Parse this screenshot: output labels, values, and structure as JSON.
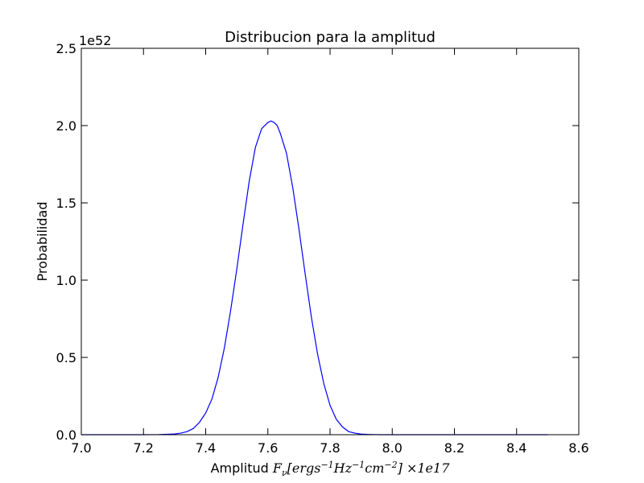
{
  "chart_data": {
    "type": "line",
    "title": "Distribucion para la amplitud",
    "xlabel": {
      "prefix": "Amplitud ",
      "math": "F",
      "math_sub": "ν",
      "math_rest": "[ergs",
      "exp1": "−1",
      "hz": "Hz",
      "exp2": "−1",
      "cm": "cm",
      "exp3": "−2",
      "close": "] ×1e17"
    },
    "ylabel": "Probabilidad",
    "y_offset_text": "1e52",
    "xlim": [
      7.0,
      8.6
    ],
    "ylim": [
      0.0,
      2.5
    ],
    "xticks": [
      "7.0",
      "7.2",
      "7.4",
      "7.6",
      "7.8",
      "8.0",
      "8.2",
      "8.4",
      "8.6"
    ],
    "yticks": [
      "0.0",
      "0.5",
      "1.0",
      "1.5",
      "2.0",
      "2.5"
    ],
    "line_color": "#0000ff",
    "grid": false,
    "series": [
      {
        "x": [
          7.0,
          7.1,
          7.2,
          7.25,
          7.3,
          7.32,
          7.34,
          7.36,
          7.38,
          7.4,
          7.42,
          7.44,
          7.46,
          7.48,
          7.5,
          7.52,
          7.54,
          7.56,
          7.58,
          7.6,
          7.61,
          7.62,
          7.63,
          7.64,
          7.66,
          7.68,
          7.7,
          7.72,
          7.74,
          7.76,
          7.78,
          7.8,
          7.82,
          7.84,
          7.86,
          7.88,
          7.9,
          7.92,
          7.94,
          7.96,
          8.0,
          8.1,
          8.2,
          8.3,
          8.4,
          8.5
        ],
        "y": [
          0.0,
          0.0,
          0.0,
          0.001,
          0.005,
          0.01,
          0.02,
          0.04,
          0.08,
          0.14,
          0.23,
          0.37,
          0.56,
          0.8,
          1.07,
          1.36,
          1.64,
          1.86,
          1.98,
          2.02,
          2.03,
          2.02,
          2.0,
          1.95,
          1.82,
          1.6,
          1.33,
          1.04,
          0.76,
          0.52,
          0.33,
          0.19,
          0.1,
          0.05,
          0.02,
          0.01,
          0.004,
          0.002,
          0.001,
          0.0,
          0.0,
          0.0,
          0.0,
          0.0,
          0.0,
          0.0
        ]
      }
    ]
  }
}
